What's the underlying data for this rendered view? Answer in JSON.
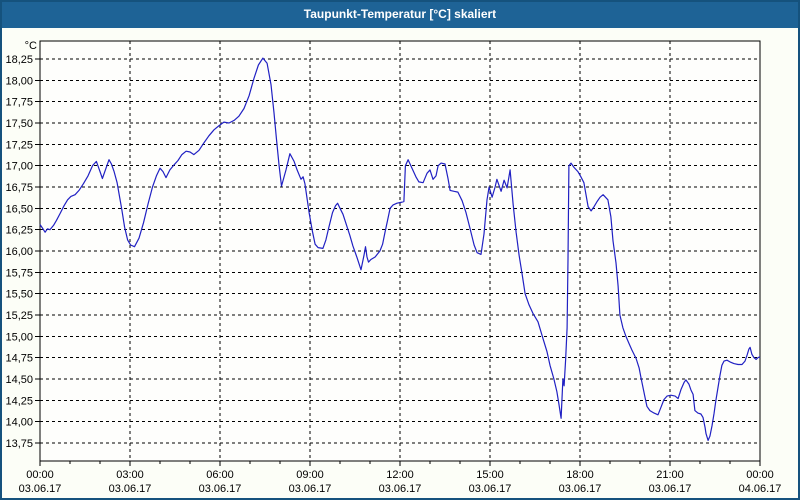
{
  "window": {
    "title": "Taupunkt-Temperatur [°C] skaliert"
  },
  "colors": {
    "titlebar_bg": "#1E6396",
    "titlebar_text": "#FFFFFF",
    "frame_border": "#15527D",
    "page_bg": "#FCFEF7",
    "plot_bg": "#FEFEFC",
    "grid": "#000000",
    "axis": "#000000",
    "tick_text": "#000000",
    "line": "#2121C3"
  },
  "chart_data": {
    "type": "line",
    "title": "Taupunkt-Temperatur [°C] skaliert",
    "xlabel": "",
    "ylabel": "°C",
    "grid": "dashed-black",
    "legend": "none",
    "y_axis": {
      "unit": "°C",
      "range": [
        13.55,
        18.46
      ],
      "ticks": [
        {
          "label": "18,25",
          "value": 18.25
        },
        {
          "label": "18,00",
          "value": 18.0
        },
        {
          "label": "17,75",
          "value": 17.75
        },
        {
          "label": "17,50",
          "value": 17.5
        },
        {
          "label": "17,25",
          "value": 17.25
        },
        {
          "label": "17,00",
          "value": 17.0
        },
        {
          "label": "16,75",
          "value": 16.75
        },
        {
          "label": "16,50",
          "value": 16.5
        },
        {
          "label": "16,25",
          "value": 16.25
        },
        {
          "label": "16,00",
          "value": 16.0
        },
        {
          "label": "15,75",
          "value": 15.75
        },
        {
          "label": "15,50",
          "value": 15.5
        },
        {
          "label": "15,25",
          "value": 15.25
        },
        {
          "label": "15,00",
          "value": 15.0
        },
        {
          "label": "14,75",
          "value": 14.75
        },
        {
          "label": "14,50",
          "value": 14.5
        },
        {
          "label": "14,25",
          "value": 14.25
        },
        {
          "label": "14,00",
          "value": 14.0
        },
        {
          "label": "13,75",
          "value": 13.75
        }
      ]
    },
    "x_axis": {
      "range_hours": [
        0,
        24
      ],
      "minor_tick_every_hours": 1,
      "ticks": [
        {
          "hour": 0,
          "time": "00:00",
          "date": "03.06.17"
        },
        {
          "hour": 3,
          "time": "03:00",
          "date": "03.06.17"
        },
        {
          "hour": 6,
          "time": "06:00",
          "date": "03.06.17"
        },
        {
          "hour": 9,
          "time": "09:00",
          "date": "03.06.17"
        },
        {
          "hour": 12,
          "time": "12:00",
          "date": "03.06.17"
        },
        {
          "hour": 15,
          "time": "15:00",
          "date": "03.06.17"
        },
        {
          "hour": 18,
          "time": "18:00",
          "date": "03.06.17"
        },
        {
          "hour": 21,
          "time": "21:00",
          "date": "03.06.17"
        },
        {
          "hour": 24,
          "time": "00:00",
          "date": "04.06.17"
        }
      ]
    },
    "series": [
      {
        "name": "Taupunkt-Temperatur",
        "color": "#2121C3",
        "points_hour_degC": [
          [
            0.0,
            16.31
          ],
          [
            0.08,
            16.27
          ],
          [
            0.17,
            16.22
          ],
          [
            0.25,
            16.26
          ],
          [
            0.33,
            16.25
          ],
          [
            0.45,
            16.3
          ],
          [
            0.55,
            16.36
          ],
          [
            0.67,
            16.44
          ],
          [
            0.8,
            16.53
          ],
          [
            0.92,
            16.6
          ],
          [
            1.03,
            16.64
          ],
          [
            1.17,
            16.66
          ],
          [
            1.3,
            16.71
          ],
          [
            1.45,
            16.79
          ],
          [
            1.6,
            16.88
          ],
          [
            1.75,
            17.0
          ],
          [
            1.88,
            17.05
          ],
          [
            2.0,
            16.93
          ],
          [
            2.08,
            16.85
          ],
          [
            2.2,
            16.97
          ],
          [
            2.3,
            17.07
          ],
          [
            2.38,
            17.02
          ],
          [
            2.47,
            16.93
          ],
          [
            2.57,
            16.8
          ],
          [
            2.63,
            16.68
          ],
          [
            2.72,
            16.5
          ],
          [
            2.82,
            16.28
          ],
          [
            2.92,
            16.13
          ],
          [
            3.02,
            16.07
          ],
          [
            3.15,
            16.05
          ],
          [
            3.3,
            16.15
          ],
          [
            3.45,
            16.33
          ],
          [
            3.6,
            16.55
          ],
          [
            3.75,
            16.75
          ],
          [
            3.88,
            16.88
          ],
          [
            4.0,
            16.97
          ],
          [
            4.1,
            16.93
          ],
          [
            4.2,
            16.86
          ],
          [
            4.33,
            16.95
          ],
          [
            4.47,
            17.01
          ],
          [
            4.6,
            17.06
          ],
          [
            4.73,
            17.13
          ],
          [
            4.87,
            17.17
          ],
          [
            5.0,
            17.16
          ],
          [
            5.13,
            17.13
          ],
          [
            5.3,
            17.18
          ],
          [
            5.47,
            17.27
          ],
          [
            5.63,
            17.35
          ],
          [
            5.8,
            17.42
          ],
          [
            5.97,
            17.47
          ],
          [
            6.13,
            17.51
          ],
          [
            6.3,
            17.5
          ],
          [
            6.47,
            17.53
          ],
          [
            6.63,
            17.58
          ],
          [
            6.8,
            17.67
          ],
          [
            6.97,
            17.82
          ],
          [
            7.13,
            18.02
          ],
          [
            7.28,
            18.18
          ],
          [
            7.43,
            18.26
          ],
          [
            7.57,
            18.2
          ],
          [
            7.7,
            17.95
          ],
          [
            7.8,
            17.62
          ],
          [
            7.88,
            17.32
          ],
          [
            7.97,
            17.0
          ],
          [
            8.05,
            16.76
          ],
          [
            8.2,
            16.95
          ],
          [
            8.33,
            17.14
          ],
          [
            8.47,
            17.05
          ],
          [
            8.57,
            16.95
          ],
          [
            8.7,
            16.84
          ],
          [
            8.77,
            16.87
          ],
          [
            8.83,
            16.79
          ],
          [
            8.9,
            16.62
          ],
          [
            8.97,
            16.45
          ],
          [
            9.07,
            16.25
          ],
          [
            9.17,
            16.08
          ],
          [
            9.27,
            16.04
          ],
          [
            9.43,
            16.03
          ],
          [
            9.53,
            16.13
          ],
          [
            9.63,
            16.28
          ],
          [
            9.75,
            16.45
          ],
          [
            9.85,
            16.53
          ],
          [
            9.92,
            16.56
          ],
          [
            10.0,
            16.5
          ],
          [
            10.1,
            16.43
          ],
          [
            10.23,
            16.29
          ],
          [
            10.33,
            16.18
          ],
          [
            10.43,
            16.06
          ],
          [
            10.57,
            15.92
          ],
          [
            10.7,
            15.78
          ],
          [
            10.8,
            15.95
          ],
          [
            10.85,
            16.05
          ],
          [
            10.9,
            15.93
          ],
          [
            10.95,
            15.87
          ],
          [
            11.03,
            15.9
          ],
          [
            11.17,
            15.93
          ],
          [
            11.33,
            16.0
          ],
          [
            11.42,
            16.08
          ],
          [
            11.5,
            16.22
          ],
          [
            11.58,
            16.35
          ],
          [
            11.67,
            16.5
          ],
          [
            11.77,
            16.54
          ],
          [
            11.9,
            16.56
          ],
          [
            12.03,
            16.57
          ],
          [
            12.13,
            16.58
          ],
          [
            12.18,
            17.0
          ],
          [
            12.27,
            17.07
          ],
          [
            12.4,
            16.97
          ],
          [
            12.53,
            16.87
          ],
          [
            12.63,
            16.81
          ],
          [
            12.77,
            16.8
          ],
          [
            12.9,
            16.91
          ],
          [
            13.0,
            16.95
          ],
          [
            13.1,
            16.84
          ],
          [
            13.2,
            16.88
          ],
          [
            13.27,
            17.0
          ],
          [
            13.37,
            17.03
          ],
          [
            13.5,
            17.02
          ],
          [
            13.6,
            16.85
          ],
          [
            13.67,
            16.71
          ],
          [
            13.8,
            16.7
          ],
          [
            13.93,
            16.69
          ],
          [
            14.07,
            16.59
          ],
          [
            14.2,
            16.45
          ],
          [
            14.33,
            16.27
          ],
          [
            14.47,
            16.07
          ],
          [
            14.57,
            15.98
          ],
          [
            14.7,
            15.96
          ],
          [
            14.8,
            16.2
          ],
          [
            14.9,
            16.6
          ],
          [
            14.97,
            16.75
          ],
          [
            15.07,
            16.63
          ],
          [
            15.17,
            16.75
          ],
          [
            15.23,
            16.84
          ],
          [
            15.37,
            16.7
          ],
          [
            15.47,
            16.83
          ],
          [
            15.57,
            16.74
          ],
          [
            15.67,
            16.95
          ],
          [
            15.77,
            16.55
          ],
          [
            15.87,
            16.22
          ],
          [
            15.97,
            15.95
          ],
          [
            16.07,
            15.73
          ],
          [
            16.17,
            15.5
          ],
          [
            16.3,
            15.37
          ],
          [
            16.43,
            15.27
          ],
          [
            16.6,
            15.17
          ],
          [
            16.77,
            14.97
          ],
          [
            16.9,
            14.82
          ],
          [
            17.0,
            14.66
          ],
          [
            17.13,
            14.5
          ],
          [
            17.23,
            14.35
          ],
          [
            17.3,
            14.2
          ],
          [
            17.37,
            14.04
          ],
          [
            17.43,
            14.5
          ],
          [
            17.47,
            14.42
          ],
          [
            17.52,
            14.72
          ],
          [
            17.57,
            15.1
          ],
          [
            17.6,
            15.9
          ],
          [
            17.63,
            17.0
          ],
          [
            17.7,
            17.03
          ],
          [
            17.8,
            16.98
          ],
          [
            17.93,
            16.93
          ],
          [
            18.03,
            16.87
          ],
          [
            18.13,
            16.8
          ],
          [
            18.2,
            16.66
          ],
          [
            18.27,
            16.52
          ],
          [
            18.37,
            16.47
          ],
          [
            18.47,
            16.52
          ],
          [
            18.57,
            16.58
          ],
          [
            18.67,
            16.63
          ],
          [
            18.77,
            16.66
          ],
          [
            18.93,
            16.6
          ],
          [
            19.03,
            16.4
          ],
          [
            19.1,
            16.12
          ],
          [
            19.2,
            15.86
          ],
          [
            19.27,
            15.59
          ],
          [
            19.33,
            15.25
          ],
          [
            19.43,
            15.1
          ],
          [
            19.53,
            15.0
          ],
          [
            19.63,
            14.92
          ],
          [
            19.73,
            14.84
          ],
          [
            19.87,
            14.74
          ],
          [
            19.97,
            14.63
          ],
          [
            20.03,
            14.52
          ],
          [
            20.1,
            14.4
          ],
          [
            20.17,
            14.28
          ],
          [
            20.23,
            14.18
          ],
          [
            20.33,
            14.13
          ],
          [
            20.47,
            14.1
          ],
          [
            20.6,
            14.08
          ],
          [
            20.7,
            14.17
          ],
          [
            20.8,
            14.26
          ],
          [
            20.9,
            14.3
          ],
          [
            21.03,
            14.31
          ],
          [
            21.17,
            14.3
          ],
          [
            21.27,
            14.27
          ],
          [
            21.37,
            14.38
          ],
          [
            21.47,
            14.46
          ],
          [
            21.53,
            14.49
          ],
          [
            21.63,
            14.44
          ],
          [
            21.7,
            14.37
          ],
          [
            21.77,
            14.32
          ],
          [
            21.83,
            14.13
          ],
          [
            21.93,
            14.1
          ],
          [
            22.03,
            14.09
          ],
          [
            22.1,
            14.05
          ],
          [
            22.17,
            13.93
          ],
          [
            22.2,
            13.86
          ],
          [
            22.27,
            13.78
          ],
          [
            22.33,
            13.83
          ],
          [
            22.4,
            13.95
          ],
          [
            22.47,
            14.1
          ],
          [
            22.53,
            14.25
          ],
          [
            22.6,
            14.4
          ],
          [
            22.67,
            14.55
          ],
          [
            22.73,
            14.66
          ],
          [
            22.8,
            14.71
          ],
          [
            22.9,
            14.72
          ],
          [
            23.0,
            14.7
          ],
          [
            23.13,
            14.68
          ],
          [
            23.27,
            14.67
          ],
          [
            23.4,
            14.67
          ],
          [
            23.5,
            14.71
          ],
          [
            23.57,
            14.78
          ],
          [
            23.63,
            14.85
          ],
          [
            23.67,
            14.87
          ],
          [
            23.73,
            14.79
          ],
          [
            23.8,
            14.75
          ],
          [
            23.87,
            14.73
          ],
          [
            23.93,
            14.75
          ],
          [
            24.0,
            14.76
          ]
        ]
      }
    ]
  }
}
